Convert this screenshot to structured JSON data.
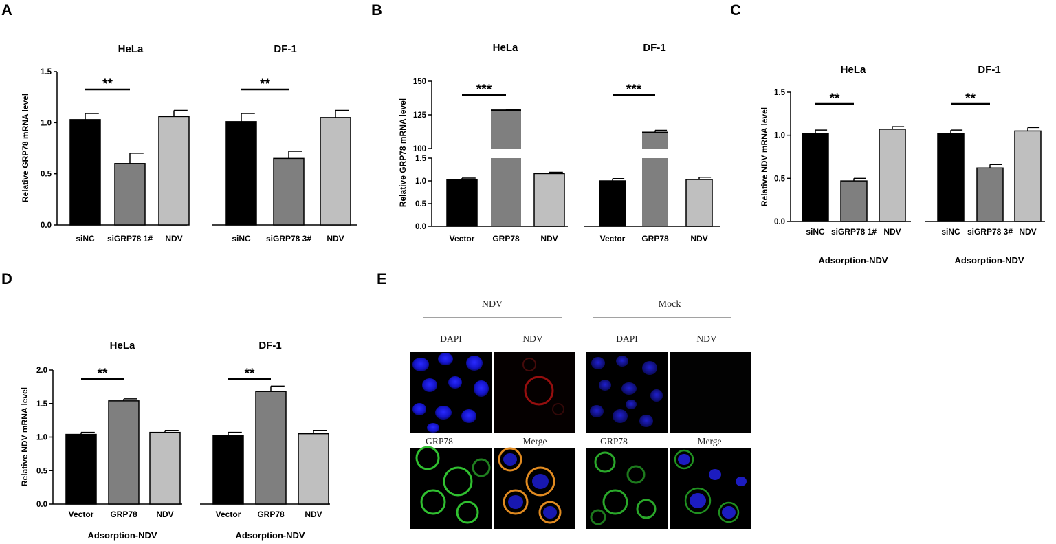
{
  "panel_labels": [
    "A",
    "B",
    "C",
    "D",
    "E"
  ],
  "chart_data": [
    {
      "id": "A",
      "type": "bar",
      "ylabel": "Relative GRP78 mRNA level",
      "ylim": [
        0,
        1.5
      ],
      "yticks": [
        "0.0",
        "0.5",
        "1.0",
        "1.5"
      ],
      "subplots": [
        {
          "title": "HeLa",
          "categories": [
            "siNC",
            "siGRP78 1#",
            "NDV"
          ],
          "values": [
            1.03,
            0.6,
            1.06
          ],
          "errors": [
            0.06,
            0.1,
            0.06
          ],
          "significance": "**",
          "sig_between": [
            0,
            1
          ],
          "xlabel": ""
        },
        {
          "title": "DF-1",
          "categories": [
            "siNC",
            "siGRP78 3#",
            "NDV"
          ],
          "values": [
            1.01,
            0.65,
            1.05
          ],
          "errors": [
            0.08,
            0.07,
            0.07
          ],
          "significance": "**",
          "sig_between": [
            0,
            1
          ],
          "xlabel": ""
        }
      ]
    },
    {
      "id": "B",
      "type": "bar",
      "ylabel": "Relative GRP78 mRNA level",
      "ylim": [
        0,
        150
      ],
      "y_break": [
        1.5,
        100
      ],
      "yticks_lower": [
        "0.0",
        "0.5",
        "1.0",
        "1.5"
      ],
      "yticks_upper": [
        "100",
        "125",
        "150"
      ],
      "subplots": [
        {
          "title": "HeLa",
          "categories": [
            "Vector",
            "GRP78",
            "NDV"
          ],
          "values": [
            1.03,
            128.5,
            1.16
          ],
          "errors": [
            0.03,
            0.4,
            0.03
          ],
          "significance": "***",
          "sig_between": [
            0,
            1
          ],
          "xlabel": ""
        },
        {
          "title": "DF-1",
          "categories": [
            "Vector",
            "GRP78",
            "NDV"
          ],
          "values": [
            1.0,
            112.0,
            1.03
          ],
          "errors": [
            0.05,
            1.5,
            0.05
          ],
          "significance": "***",
          "sig_between": [
            0,
            1
          ],
          "xlabel": ""
        }
      ]
    },
    {
      "id": "C",
      "type": "bar",
      "ylabel": "Relative NDV mRNA level",
      "ylim": [
        0,
        1.5
      ],
      "yticks": [
        "0.0",
        "0.5",
        "1.0",
        "1.5"
      ],
      "subplots": [
        {
          "title": "HeLa",
          "categories": [
            "siNC",
            "siGRP78 1#",
            "NDV"
          ],
          "values": [
            1.02,
            0.47,
            1.07
          ],
          "errors": [
            0.04,
            0.03,
            0.03
          ],
          "significance": "**",
          "sig_between": [
            0,
            1
          ],
          "xlabel": "Adsorption-NDV"
        },
        {
          "title": "DF-1",
          "categories": [
            "siNC",
            "siGRP78 3#",
            "NDV"
          ],
          "values": [
            1.02,
            0.62,
            1.05
          ],
          "errors": [
            0.04,
            0.04,
            0.04
          ],
          "significance": "**",
          "sig_between": [
            0,
            1
          ],
          "xlabel": "Adsorption-NDV"
        }
      ]
    },
    {
      "id": "D",
      "type": "bar",
      "ylabel": "Relative NDV mRNA level",
      "ylim": [
        0,
        2.0
      ],
      "yticks": [
        "0.0",
        "0.5",
        "1.0",
        "1.5",
        "2.0"
      ],
      "subplots": [
        {
          "title": "HeLa",
          "categories": [
            "Vector",
            "GRP78",
            "NDV"
          ],
          "values": [
            1.04,
            1.54,
            1.07
          ],
          "errors": [
            0.03,
            0.03,
            0.03
          ],
          "significance": "**",
          "sig_between": [
            0,
            1
          ],
          "xlabel": "Adsorption-NDV"
        },
        {
          "title": "DF-1",
          "categories": [
            "Vector",
            "GRP78",
            "NDV"
          ],
          "values": [
            1.02,
            1.68,
            1.05
          ],
          "errors": [
            0.05,
            0.08,
            0.05
          ],
          "significance": "**",
          "sig_between": [
            0,
            1
          ],
          "xlabel": "Adsorption-NDV"
        }
      ]
    }
  ],
  "panel_e": {
    "groups": [
      "NDV",
      "Mock"
    ],
    "columns": [
      "DAPI",
      "NDV",
      "DAPI",
      "NDV"
    ],
    "row2_labels": [
      "GRP78",
      "Merge",
      "GRP78",
      "Merge"
    ]
  },
  "colors": {
    "black": "#000000",
    "dark_gray": "#7f7f7f",
    "light_gray": "#bfbfbf"
  }
}
